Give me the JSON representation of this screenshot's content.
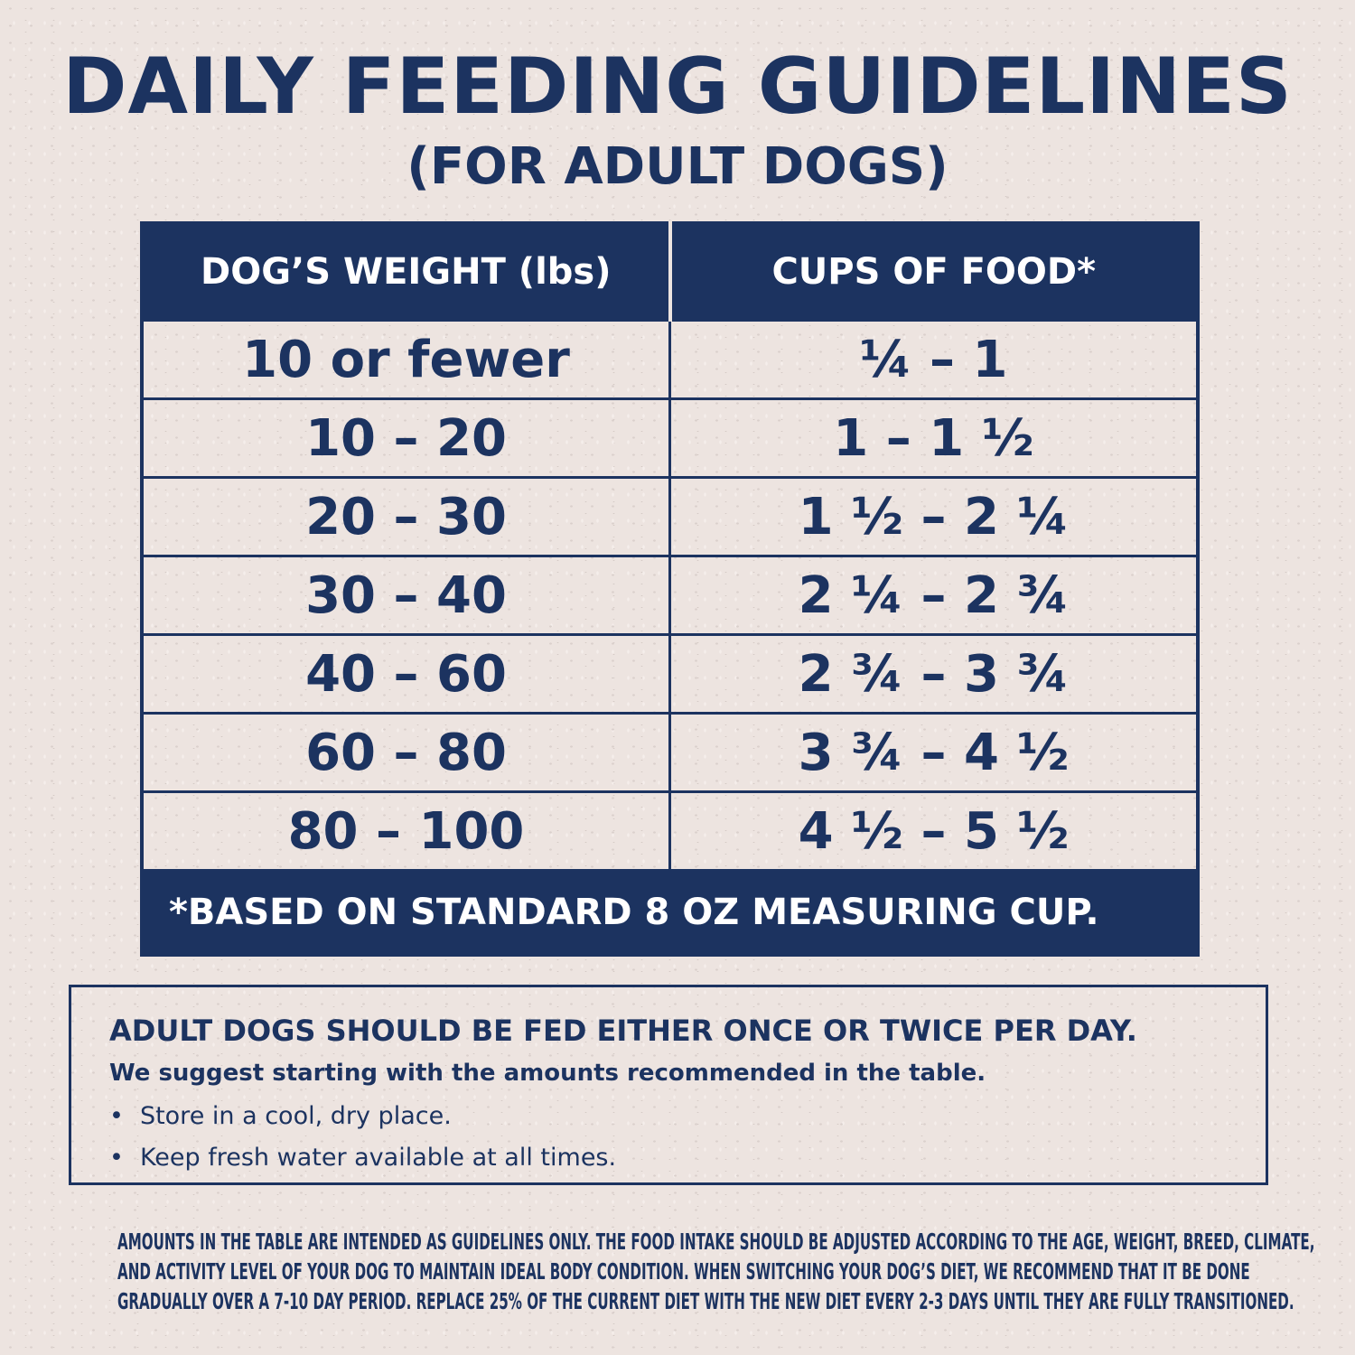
{
  "title": "DAILY FEEDING GUIDELINES",
  "subtitle": "(FOR ADULT DOGS)",
  "table": {
    "headers": [
      "DOG’S WEIGHT (lbs)",
      "CUPS OF FOOD*"
    ],
    "rows": [
      [
        "10 or fewer",
        "¼ – 1"
      ],
      [
        "10 – 20",
        "1 – 1 ½"
      ],
      [
        "20 – 30",
        "1 ½ – 2 ¼"
      ],
      [
        "30 – 40",
        "2 ¼ – 2 ¾"
      ],
      [
        "40 – 60",
        "2 ¾ – 3 ¾"
      ],
      [
        "60 – 80",
        "3 ¾ – 4 ½"
      ],
      [
        "80 – 100",
        "4 ½ – 5 ½"
      ]
    ],
    "footnote": "*BASED ON STANDARD 8 OZ MEASURING CUP."
  },
  "info": {
    "heading": "ADULT DOGS SHOULD BE FED EITHER ONCE OR TWICE PER DAY.",
    "suggestion": "We suggest starting with the amounts recommended in the table.",
    "bullets": [
      "Store in a cool, dry place.",
      "Keep fresh water available at all times."
    ]
  },
  "fine_print": [
    "AMOUNTS IN THE TABLE ARE INTENDED AS GUIDELINES ONLY. THE FOOD INTAKE SHOULD BE ADJUSTED ACCORDING TO THE AGE, WEIGHT, BREED, CLIMATE,",
    "AND ACTIVITY LEVEL OF YOUR DOG TO MAINTAIN IDEAL BODY CONDITION. WHEN SWITCHING YOUR DOG’S DIET, WE RECOMMEND THAT IT BE DONE",
    "GRADUALLY OVER A 7-10 DAY PERIOD. REPLACE 25% OF THE CURRENT DIET WITH THE NEW DIET EVERY 2-3 DAYS UNTIL THEY ARE FULLY TRANSITIONED."
  ],
  "colors": {
    "navy": "#1c3360",
    "background": "#ede4e0"
  }
}
